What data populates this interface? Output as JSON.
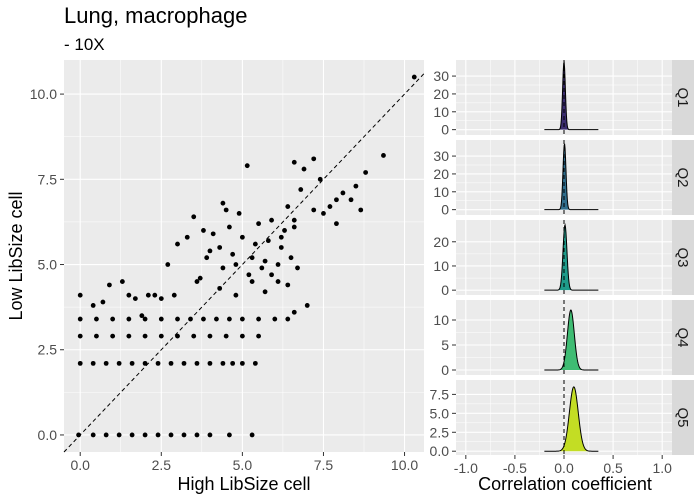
{
  "title": "Lung, macrophage",
  "subtitle": "- 10X",
  "chart_data": [
    {
      "type": "scatter",
      "xlabel": "High LibSize cell",
      "ylabel": "Low LibSize cell",
      "xlim": [
        -0.5,
        10.6
      ],
      "ylim": [
        -0.5,
        11.0
      ],
      "x_ticks": [
        "0.0",
        "2.5",
        "5.0",
        "7.5",
        "10.0"
      ],
      "y_ticks": [
        "0.0",
        "2.5",
        "5.0",
        "7.5",
        "10.0"
      ],
      "reference_line": "y = x (dashed)",
      "grid": true,
      "points": [
        [
          10.3,
          10.5
        ],
        [
          9.35,
          8.2
        ],
        [
          8.8,
          7.7
        ],
        [
          8.5,
          7.3
        ],
        [
          8.35,
          6.9
        ],
        [
          8.65,
          6.6
        ],
        [
          8.1,
          7.1
        ],
        [
          7.9,
          6.9
        ],
        [
          7.7,
          6.7
        ],
        [
          7.5,
          6.5
        ],
        [
          7.4,
          7.5
        ],
        [
          7.2,
          6.6
        ],
        [
          6.9,
          7.8
        ],
        [
          6.6,
          8.0
        ],
        [
          7.2,
          8.1
        ],
        [
          6.8,
          7.2
        ],
        [
          6.4,
          6.7
        ],
        [
          6.6,
          6.3
        ],
        [
          6.3,
          6.0
        ],
        [
          6.6,
          6.1
        ],
        [
          6.2,
          5.5
        ],
        [
          6.5,
          5.2
        ],
        [
          6.1,
          5.0
        ],
        [
          5.9,
          6.3
        ],
        [
          5.8,
          5.7
        ],
        [
          5.7,
          5.1
        ],
        [
          5.5,
          6.2
        ],
        [
          5.6,
          4.9
        ],
        [
          5.4,
          5.6
        ],
        [
          5.3,
          5.2
        ],
        [
          5.2,
          4.7
        ],
        [
          5.15,
          7.9
        ],
        [
          4.9,
          6.5
        ],
        [
          4.8,
          5.0
        ],
        [
          4.6,
          6.1
        ],
        [
          4.5,
          6.6
        ],
        [
          4.3,
          5.5
        ],
        [
          4.1,
          5.9
        ],
        [
          3.9,
          5.2
        ],
        [
          3.8,
          6.0
        ],
        [
          3.6,
          4.5
        ],
        [
          3.3,
          5.8
        ],
        [
          3.0,
          5.6
        ],
        [
          2.9,
          4.1
        ],
        [
          2.7,
          5.0
        ],
        [
          2.5,
          4.0
        ],
        [
          2.3,
          4.1
        ],
        [
          2.1,
          4.1
        ],
        [
          1.7,
          4.0
        ],
        [
          1.5,
          4.1
        ],
        [
          1.3,
          4.5
        ],
        [
          0.7,
          3.9
        ],
        [
          0.4,
          3.8
        ],
        [
          0.9,
          4.4
        ],
        [
          0.0,
          4.1
        ],
        [
          3.5,
          6.4
        ],
        [
          4.0,
          5.4
        ],
        [
          4.4,
          4.9
        ],
        [
          4.7,
          5.3
        ],
        [
          5.0,
          5.8
        ],
        [
          5.9,
          4.7
        ],
        [
          6.1,
          4.5
        ],
        [
          6.4,
          4.4
        ],
        [
          5.7,
          4.2
        ],
        [
          6.6,
          3.6
        ],
        [
          7.0,
          3.8
        ],
        [
          6.7,
          4.9
        ],
        [
          3.7,
          4.6
        ],
        [
          4.3,
          4.3
        ],
        [
          4.8,
          4.1
        ],
        [
          5.3,
          4.5
        ],
        [
          1.9,
          3.5
        ],
        [
          0.0,
          3.4
        ],
        [
          0.5,
          3.4
        ],
        [
          1.0,
          3.4
        ],
        [
          1.5,
          3.4
        ],
        [
          2.0,
          3.4
        ],
        [
          2.5,
          3.4
        ],
        [
          3.0,
          3.4
        ],
        [
          3.4,
          3.4
        ],
        [
          3.8,
          3.4
        ],
        [
          4.2,
          3.4
        ],
        [
          4.6,
          3.4
        ],
        [
          5.0,
          3.4
        ],
        [
          5.5,
          3.4
        ],
        [
          6.0,
          3.4
        ],
        [
          6.4,
          3.4
        ],
        [
          0.0,
          2.9
        ],
        [
          0.5,
          2.9
        ],
        [
          1.0,
          2.9
        ],
        [
          1.5,
          2.9
        ],
        [
          2.0,
          2.9
        ],
        [
          2.5,
          2.9
        ],
        [
          3.0,
          2.9
        ],
        [
          3.5,
          2.9
        ],
        [
          4.0,
          2.9
        ],
        [
          4.5,
          2.9
        ],
        [
          5.0,
          2.9
        ],
        [
          5.5,
          2.9
        ],
        [
          0.0,
          2.1
        ],
        [
          0.4,
          2.1
        ],
        [
          0.8,
          2.1
        ],
        [
          1.2,
          2.1
        ],
        [
          1.6,
          2.1
        ],
        [
          2.0,
          2.1
        ],
        [
          2.4,
          2.1
        ],
        [
          2.8,
          2.1
        ],
        [
          3.2,
          2.1
        ],
        [
          3.6,
          2.1
        ],
        [
          4.0,
          2.1
        ],
        [
          4.4,
          2.1
        ],
        [
          4.7,
          2.1
        ],
        [
          5.0,
          2.1
        ],
        [
          5.4,
          2.1
        ],
        [
          -0.05,
          0.0
        ],
        [
          0.4,
          0.0
        ],
        [
          0.8,
          0.0
        ],
        [
          1.2,
          0.0
        ],
        [
          1.6,
          0.0
        ],
        [
          2.0,
          0.0
        ],
        [
          2.4,
          0.0
        ],
        [
          2.8,
          0.0
        ],
        [
          3.2,
          0.0
        ],
        [
          3.6,
          0.0
        ],
        [
          4.0,
          0.0
        ],
        [
          4.6,
          0.0
        ],
        [
          5.3,
          0.0
        ],
        [
          4.4,
          6.8
        ],
        [
          6.2,
          5.8
        ],
        [
          7.9,
          6.2
        ]
      ]
    },
    {
      "type": "area",
      "facets": [
        {
          "label": "Q1",
          "color": "#3b2c6f",
          "ylim": [
            -3,
            39
          ],
          "y_ticks": [
            "0",
            "10",
            "20",
            "30"
          ],
          "peak": 38,
          "center": 0.0,
          "sd": 0.014
        },
        {
          "label": "Q2",
          "color": "#2f6d8c",
          "ylim": [
            -3,
            39
          ],
          "y_ticks": [
            "0",
            "10",
            "20",
            "30"
          ],
          "peak": 37,
          "center": 0.005,
          "sd": 0.015
        },
        {
          "label": "Q3",
          "color": "#1e9b8a",
          "ylim": [
            -2,
            29
          ],
          "y_ticks": [
            "0",
            "10",
            "20"
          ],
          "peak": 27,
          "center": 0.01,
          "sd": 0.02
        },
        {
          "label": "Q4",
          "color": "#3fbc73",
          "ylim": [
            -1,
            14
          ],
          "y_ticks": [
            "0",
            "5",
            "10"
          ],
          "peak": 12,
          "center": 0.07,
          "sd": 0.035
        },
        {
          "label": "Q5",
          "color": "#c3dd24",
          "ylim": [
            -0.5,
            9.4
          ],
          "y_ticks": [
            "0.0",
            "2.5",
            "5.0",
            "7.5"
          ],
          "peak": 8.5,
          "center": 0.1,
          "sd": 0.045
        }
      ],
      "x_range": [
        -0.2,
        0.35
      ],
      "xlim": [
        -1.1,
        1.1
      ],
      "x_ticks": [
        "-1.0",
        "-0.5",
        "0.0",
        "0.5",
        "1.0"
      ],
      "xlabel": "Correlation coefficient",
      "vline": 0.0
    }
  ]
}
